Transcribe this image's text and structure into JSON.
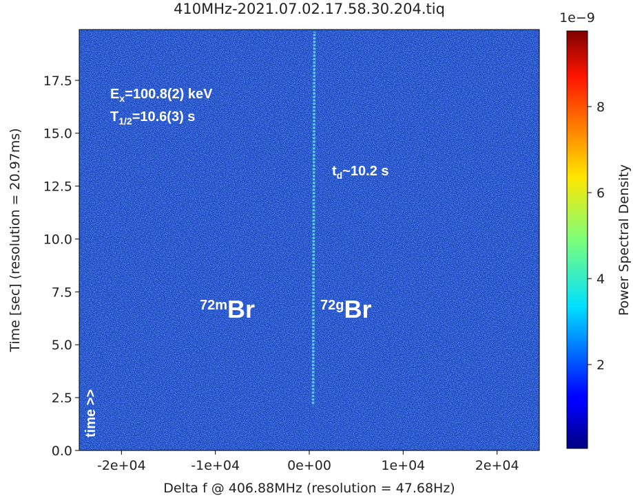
{
  "chart_data": {
    "type": "spectrogram",
    "title": "410MHz-2021.07.02.17.58.30.204.tiq",
    "xlabel": "Delta f @ 406.88MHz (resolution = 47.68Hz)",
    "ylabel": "Time [sec] (resolution = 20.97ms)",
    "xlim": [
      -24500,
      24500
    ],
    "xticks": [
      {
        "value": -20000,
        "label": "-2e+04"
      },
      {
        "value": -10000,
        "label": "-1e+04"
      },
      {
        "value": 0,
        "label": "0e+00"
      },
      {
        "value": 10000,
        "label": "1e+04"
      },
      {
        "value": 20000,
        "label": "2e+04"
      }
    ],
    "ylim": [
      0,
      19.9
    ],
    "yticks": [
      {
        "value": 0,
        "label": "0.0"
      },
      2.5,
      {
        "value": 5,
        "label": "5.0"
      },
      7.5,
      {
        "value": 10,
        "label": "10.0"
      },
      12.5,
      {
        "value": 15,
        "label": "15.0"
      },
      17.5
    ],
    "colormap": "jet",
    "clim": [
      0.05,
      9.76
    ],
    "cticks": [
      2,
      4,
      6,
      8
    ],
    "colorbar_label": "Power Spectral Density",
    "colorbar_offset": "1e−9",
    "trace": {
      "color": "#5fe0e6",
      "x": [
        400,
        450,
        500,
        550
      ],
      "y": [
        2.2,
        8,
        14,
        19.8
      ]
    },
    "annotations": [
      {
        "main": "E",
        "sub": "x",
        "rest": "=100.8(2) keV"
      },
      {
        "main": "T",
        "sub": "1/2",
        "rest": "=10.6(3) s"
      },
      {
        "main": "t",
        "sub": "d",
        "rest": "~10.2 s"
      },
      {
        "sup": "72m",
        "rest": "Br"
      },
      {
        "sup": "72g",
        "rest": "Br"
      },
      {
        "rest": "time >>"
      }
    ]
  }
}
